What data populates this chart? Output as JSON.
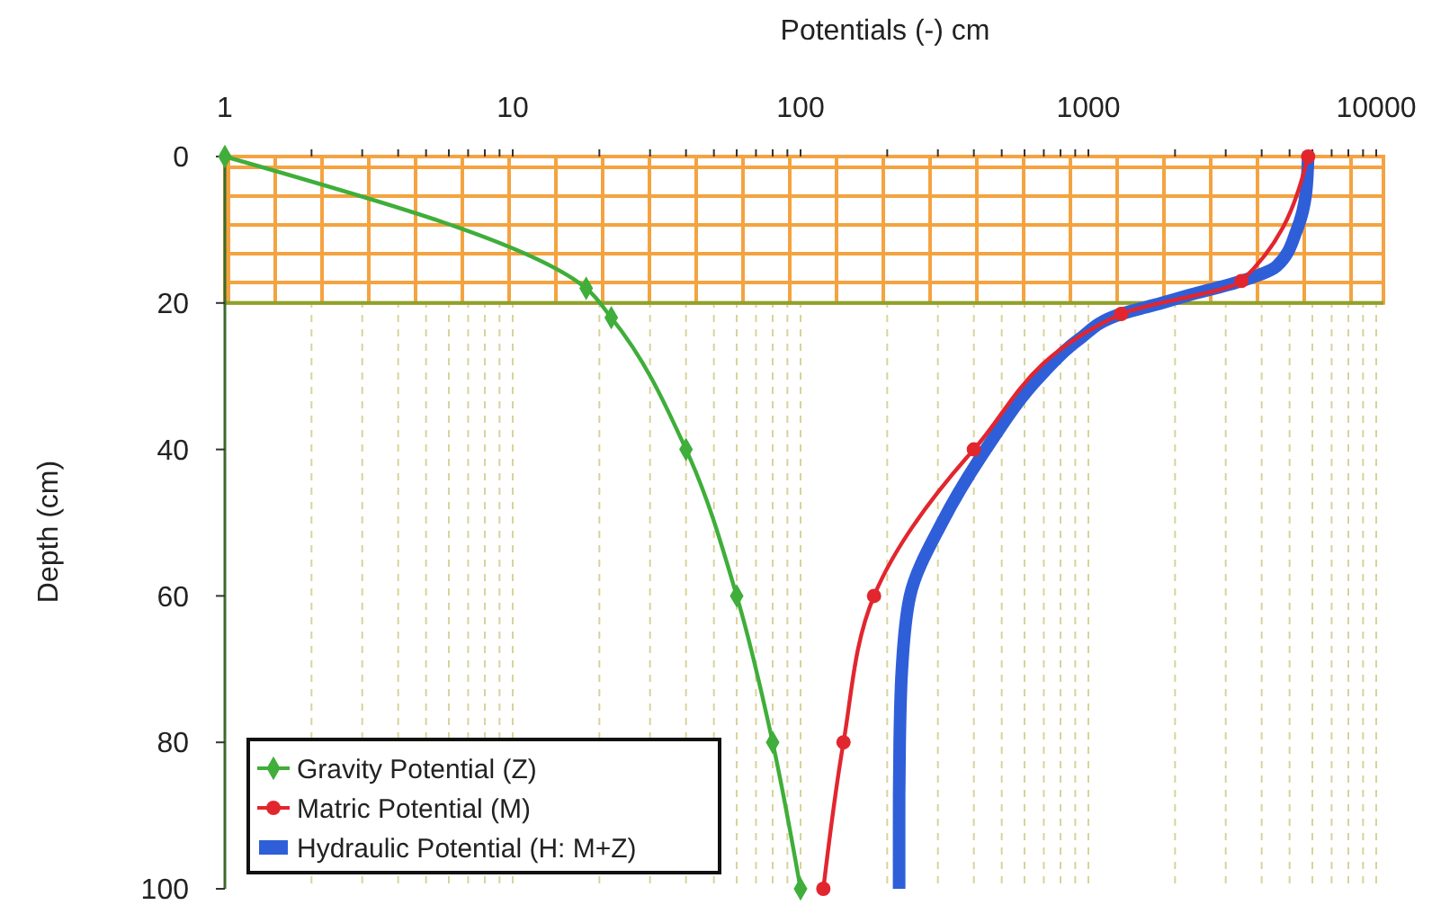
{
  "chart_data": {
    "type": "line",
    "xlabel": "Potentials (-) cm",
    "ylabel": "Depth (cm)",
    "log": "x",
    "xlim": [
      1,
      10000
    ],
    "xticks": [
      1,
      {
        "value": 2,
        "label": null
      },
      {
        "value": 3,
        "label": null
      },
      {
        "value": 4,
        "label": null
      },
      {
        "value": 5,
        "label": null
      },
      {
        "value": 6,
        "label": null
      },
      {
        "value": 7,
        "label": null
      },
      {
        "value": 8,
        "label": null
      },
      {
        "value": 9,
        "label": null
      },
      10,
      {
        "value": 20,
        "label": null
      },
      {
        "value": 30,
        "label": null
      },
      {
        "value": 40,
        "label": null
      },
      {
        "value": 50,
        "label": null
      },
      {
        "value": 60,
        "label": null
      },
      {
        "value": 70,
        "label": null
      },
      {
        "value": 80,
        "label": null
      },
      {
        "value": 90,
        "label": null
      },
      100,
      {
        "value": 200,
        "label": null
      },
      {
        "value": 300,
        "label": null
      },
      {
        "value": 400,
        "label": null
      },
      {
        "value": 500,
        "label": null
      },
      {
        "value": 600,
        "label": null
      },
      {
        "value": 700,
        "label": null
      },
      {
        "value": 800,
        "label": null
      },
      {
        "value": 900,
        "label": null
      },
      1000,
      {
        "value": 2000,
        "label": null
      },
      {
        "value": 3000,
        "label": null
      },
      {
        "value": 4000,
        "label": null
      },
      {
        "value": 5000,
        "label": null
      },
      {
        "value": 6000,
        "label": null
      },
      {
        "value": 7000,
        "label": null
      },
      {
        "value": 8000,
        "label": null
      },
      {
        "value": 9000,
        "label": null
      },
      10000
    ],
    "ylim": [
      100,
      0
    ],
    "yticks": [
      0,
      20,
      40,
      60,
      80,
      100
    ],
    "grid": "x",
    "legend": "bottom left",
    "bands": [
      {
        "axis": "y",
        "from": 0,
        "to": 20,
        "color": "#f4a340"
      }
    ],
    "ref_lines": [
      {
        "axis": "y",
        "value": 20,
        "color": "#8da22c"
      }
    ],
    "series": [
      {
        "name": "Gravity Potential (Z)",
        "color": "#3fae3a",
        "marker": "diamond",
        "x": [
          1,
          18,
          22,
          40,
          60,
          80,
          100
        ],
        "values": [
          0,
          18,
          22,
          40,
          60,
          80,
          100
        ]
      },
      {
        "name": "Matric Potential (M)",
        "color": "#e2262e",
        "marker": "circle",
        "x": [
          5800,
          3400,
          1300,
          400,
          180,
          141,
          120
        ],
        "values": [
          0,
          17,
          21.5,
          40,
          60,
          80,
          100
        ]
      },
      {
        "name": "Hydraulic Potential (H: M+Z)",
        "color": "#2f5fd8",
        "marker": "none",
        "x": [
          5800,
          5700,
          5300,
          4500,
          3400,
          2200,
          1800,
          1300,
          925,
          680,
          440,
          310,
          240,
          225,
          221,
          220,
          220
        ],
        "values": [
          0,
          5,
          10,
          15,
          17,
          19,
          20,
          21.5,
          25,
          30,
          40,
          50,
          60,
          70,
          80,
          90,
          100
        ]
      }
    ]
  }
}
